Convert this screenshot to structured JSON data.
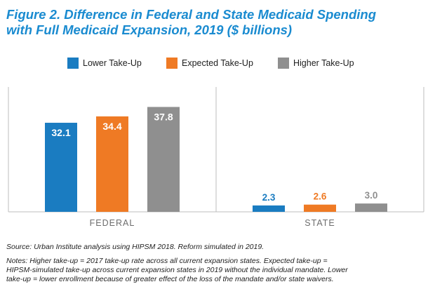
{
  "title_line1": "Figure 2. Difference in Federal and State Medicaid Spending",
  "title_line2": "with Full Medicaid Expansion, 2019 ($ billions)",
  "colors": {
    "title": "#1a8bd0",
    "lower": "#1a7cc1",
    "expected": "#ef7a24",
    "higher": "#8f8f8f",
    "axis": "#bdbdbd",
    "category_label": "#6d6d6d"
  },
  "chart_data": {
    "type": "bar",
    "categories": [
      "FEDERAL",
      "STATE"
    ],
    "series": [
      {
        "name": "Lower Take-Up",
        "values": [
          32.1,
          2.3
        ],
        "color": "#1a7cc1"
      },
      {
        "name": "Expected Take-Up",
        "values": [
          34.4,
          2.6
        ],
        "color": "#ef7a24"
      },
      {
        "name": "Higher Take-Up",
        "values": [
          37.8,
          3.0
        ],
        "color": "#8f8f8f"
      }
    ],
    "ylim": [
      0,
      45
    ],
    "grid": false,
    "legend_position": "top-center",
    "data_labels": true
  },
  "source": "Source: Urban Institute analysis using HIPSM 2018. Reform simulated in 2019.",
  "notes_lines": [
    "Notes: Higher take-up = 2017 take-up rate across all current expansion states. Expected take-up =",
    "HIPSM-simulated take-up across current expansion states in 2019 without the individual mandate. Lower",
    "take-up = lower enrollment because of greater effect of the loss of the mandate and/or state waivers."
  ]
}
